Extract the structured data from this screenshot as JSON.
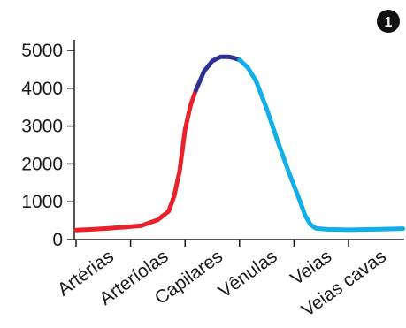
{
  "badge": "1",
  "chart_data": {
    "type": "line",
    "title": "",
    "xlabel": "",
    "ylabel": "",
    "categories": [
      "Artérias",
      "Arteríolas",
      "Capilares",
      "Vênulas",
      "Veias",
      "Veias cavas"
    ],
    "ylim": [
      0,
      5000
    ],
    "yticks": [
      0,
      1000,
      2000,
      3000,
      4000,
      5000
    ],
    "grid": false,
    "colors": {
      "red": "#e8212a",
      "navy": "#2e3192",
      "cyan": "#12aee8"
    },
    "x": [
      0,
      0.3,
      0.6,
      0.9,
      1.2,
      1.5,
      1.7,
      1.8,
      1.9,
      2.0,
      2.1,
      2.2,
      2.35,
      2.5,
      2.65,
      2.8,
      2.9,
      3.0,
      3.15,
      3.3,
      3.5,
      3.7,
      3.9,
      4.1,
      4.2,
      4.3,
      4.4,
      4.6,
      5.0,
      5.5,
      6.0
    ],
    "y": [
      250,
      270,
      300,
      330,
      370,
      520,
      750,
      1150,
      1800,
      2900,
      3550,
      3950,
      4450,
      4720,
      4830,
      4830,
      4800,
      4750,
      4550,
      4200,
      3450,
      2600,
      1800,
      1050,
      650,
      400,
      300,
      270,
      260,
      270,
      290
    ],
    "segments": [
      {
        "color": "red",
        "from_x": 0,
        "to_x": 2.2
      },
      {
        "color": "navy",
        "from_x": 2.2,
        "to_x": 3.0
      },
      {
        "color": "cyan",
        "from_x": 3.0,
        "to_x": 6.0
      }
    ]
  }
}
